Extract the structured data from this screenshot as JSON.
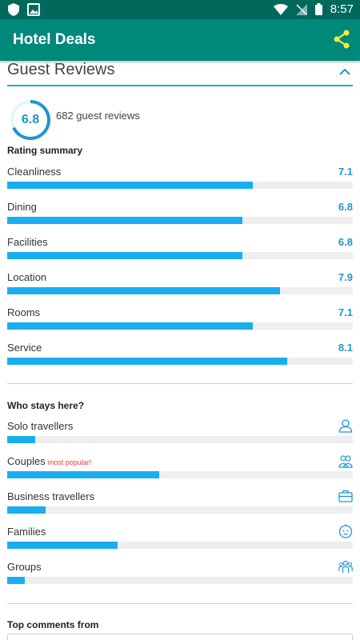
{
  "status": {
    "time": "8:57"
  },
  "appbar": {
    "title": "Hotel Deals"
  },
  "reviews": {
    "section_title": "Guest Reviews",
    "score": "6.8",
    "score_fraction": 0.68,
    "count_text": "682 guest reviews",
    "summary_heading": "Rating summary",
    "ratings": [
      {
        "label": "Cleanliness",
        "value": "7.1",
        "fraction": 0.71
      },
      {
        "label": "Dining",
        "value": "6.8",
        "fraction": 0.68
      },
      {
        "label": "Facilities",
        "value": "6.8",
        "fraction": 0.68
      },
      {
        "label": "Location",
        "value": "7.9",
        "fraction": 0.79
      },
      {
        "label": "Rooms",
        "value": "7.1",
        "fraction": 0.71
      },
      {
        "label": "Service",
        "value": "8.1",
        "fraction": 0.81
      }
    ],
    "who_heading": "Who stays here?",
    "guests": [
      {
        "label": "Solo travellers",
        "tag": "",
        "fraction": 0.08,
        "icon": "user-icon"
      },
      {
        "label": "Couples",
        "tag": "most popular!",
        "fraction": 0.44,
        "icon": "couple-icon"
      },
      {
        "label": "Business travellers",
        "tag": "",
        "fraction": 0.11,
        "icon": "briefcase-icon"
      },
      {
        "label": "Families",
        "tag": "",
        "fraction": 0.32,
        "icon": "baby-face-icon"
      },
      {
        "label": "Groups",
        "tag": "",
        "fraction": 0.05,
        "icon": "group-icon"
      }
    ],
    "comments_heading": "Top comments from"
  },
  "colors": {
    "status_bar": "#00695c",
    "app_bar": "#00897b",
    "accent": "#1e95d4",
    "bar_fill": "#19aef0",
    "share_icon": "#ffeb3b",
    "tag": "#e53935"
  }
}
